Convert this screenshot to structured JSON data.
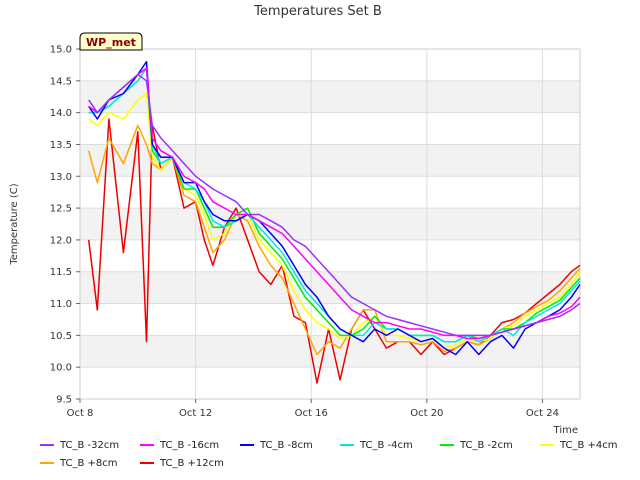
{
  "chart_data": {
    "type": "line",
    "title": "Temperatures Set B",
    "xlabel": "Time",
    "ylabel": "Temperature (C)",
    "annotation": "WP_met",
    "xlim": [
      8,
      25.3
    ],
    "ylim": [
      9.5,
      15.0
    ],
    "xticks": [
      8,
      12,
      16,
      20,
      24
    ],
    "xtick_labels": [
      "Oct 8",
      "Oct 12",
      "Oct 16",
      "Oct 20",
      "Oct 24"
    ],
    "yticks": [
      9.5,
      10.0,
      10.5,
      11.0,
      11.5,
      12.0,
      12.5,
      13.0,
      13.5,
      14.0,
      14.5,
      15.0
    ],
    "ytick_labels": [
      "9.5",
      "10.0",
      "10.5",
      "11.0",
      "11.5",
      "12.0",
      "12.5",
      "13.0",
      "13.5",
      "14.0",
      "14.5",
      "15.0"
    ],
    "x_unit": "day of October",
    "grid": true,
    "legend_position": "bottom",
    "x": [
      8.3,
      8.6,
      9.0,
      9.5,
      10.0,
      10.3,
      10.5,
      10.8,
      11.2,
      11.6,
      12.0,
      12.3,
      12.6,
      13.0,
      13.4,
      13.8,
      14.2,
      14.6,
      15.0,
      15.4,
      15.8,
      16.2,
      16.6,
      17.0,
      17.4,
      17.8,
      18.2,
      18.6,
      19.0,
      19.4,
      19.8,
      20.2,
      20.6,
      21.0,
      21.4,
      21.8,
      22.2,
      22.6,
      23.0,
      23.4,
      23.8,
      24.2,
      24.6,
      25.0,
      25.3
    ],
    "series": [
      {
        "name": "TC_B -32cm",
        "color": "#9b30ff",
        "values": [
          14.2,
          14.0,
          14.2,
          14.4,
          14.6,
          14.5,
          13.8,
          13.6,
          13.4,
          13.2,
          13.0,
          12.9,
          12.8,
          12.7,
          12.6,
          12.4,
          12.4,
          12.3,
          12.2,
          12.0,
          11.9,
          11.7,
          11.5,
          11.3,
          11.1,
          11.0,
          10.9,
          10.8,
          10.75,
          10.7,
          10.65,
          10.6,
          10.55,
          10.5,
          10.5,
          10.5,
          10.5,
          10.55,
          10.6,
          10.65,
          10.7,
          10.75,
          10.8,
          10.9,
          11.0
        ]
      },
      {
        "name": "TC_B -16cm",
        "color": "#ff00ff",
        "values": [
          14.1,
          14.0,
          14.2,
          14.4,
          14.6,
          14.7,
          13.6,
          13.4,
          13.3,
          13.0,
          12.9,
          12.8,
          12.6,
          12.5,
          12.4,
          12.4,
          12.3,
          12.2,
          12.1,
          11.9,
          11.7,
          11.5,
          11.3,
          11.1,
          10.9,
          10.8,
          10.7,
          10.7,
          10.65,
          10.6,
          10.6,
          10.55,
          10.5,
          10.5,
          10.45,
          10.45,
          10.5,
          10.55,
          10.6,
          10.65,
          10.7,
          10.8,
          10.85,
          10.95,
          11.1
        ]
      },
      {
        "name": "TC_B -8cm",
        "color": "#0000ff",
        "values": [
          14.1,
          13.9,
          14.2,
          14.3,
          14.6,
          14.8,
          13.5,
          13.3,
          13.3,
          12.9,
          12.9,
          12.6,
          12.4,
          12.3,
          12.3,
          12.4,
          12.3,
          12.1,
          11.9,
          11.6,
          11.3,
          11.1,
          10.8,
          10.6,
          10.5,
          10.4,
          10.6,
          10.5,
          10.6,
          10.5,
          10.4,
          10.45,
          10.3,
          10.2,
          10.4,
          10.2,
          10.4,
          10.5,
          10.3,
          10.6,
          10.7,
          10.8,
          10.9,
          11.1,
          11.3
        ]
      },
      {
        "name": "TC_B -4cm",
        "color": "#00e5ee",
        "values": [
          14.0,
          14.0,
          14.1,
          14.3,
          14.5,
          14.7,
          13.5,
          13.2,
          13.3,
          12.9,
          12.8,
          12.6,
          12.3,
          12.2,
          12.3,
          12.4,
          12.2,
          12.0,
          11.8,
          11.5,
          11.2,
          11.0,
          10.8,
          10.6,
          10.5,
          10.5,
          10.7,
          10.6,
          10.6,
          10.5,
          10.5,
          10.5,
          10.4,
          10.4,
          10.5,
          10.4,
          10.5,
          10.6,
          10.5,
          10.7,
          10.8,
          10.9,
          11.0,
          11.2,
          11.35
        ]
      },
      {
        "name": "TC_B -2cm",
        "color": "#00ee00",
        "values": [
          14.0,
          14.0,
          14.1,
          14.3,
          14.5,
          14.7,
          13.4,
          13.2,
          13.3,
          12.8,
          12.8,
          12.5,
          12.2,
          12.2,
          12.4,
          12.5,
          12.1,
          11.9,
          11.7,
          11.4,
          11.1,
          10.9,
          10.7,
          10.5,
          10.5,
          10.6,
          10.8,
          10.6,
          10.6,
          10.5,
          10.5,
          10.5,
          10.4,
          10.4,
          10.5,
          10.45,
          10.5,
          10.6,
          10.6,
          10.7,
          10.85,
          10.95,
          11.05,
          11.25,
          11.4
        ]
      },
      {
        "name": "TC_B +4cm",
        "color": "#ffff00",
        "values": [
          13.9,
          13.8,
          14.0,
          13.9,
          14.2,
          14.3,
          13.3,
          13.1,
          13.3,
          12.8,
          12.7,
          12.4,
          12.0,
          12.1,
          12.4,
          12.4,
          12.0,
          11.8,
          11.6,
          11.2,
          10.9,
          10.7,
          10.6,
          10.45,
          10.5,
          10.7,
          10.8,
          10.5,
          10.5,
          10.45,
          10.4,
          10.45,
          10.3,
          10.35,
          10.45,
          10.4,
          10.45,
          10.6,
          10.65,
          10.8,
          10.9,
          11.0,
          11.1,
          11.3,
          11.5
        ]
      },
      {
        "name": "TC_B +8cm",
        "color": "#ffa500",
        "values": [
          13.4,
          12.9,
          13.6,
          13.2,
          13.8,
          13.5,
          13.2,
          13.1,
          13.3,
          12.7,
          12.6,
          12.2,
          11.8,
          12.0,
          12.4,
          12.3,
          11.9,
          11.6,
          11.4,
          11.0,
          10.6,
          10.2,
          10.4,
          10.3,
          10.6,
          10.9,
          10.9,
          10.4,
          10.4,
          10.4,
          10.35,
          10.4,
          10.25,
          10.3,
          10.4,
          10.35,
          10.45,
          10.6,
          10.7,
          10.85,
          10.95,
          11.05,
          11.2,
          11.4,
          11.55
        ]
      },
      {
        "name": "TC_B +12cm",
        "color": "#ee0000",
        "values": [
          12.0,
          10.9,
          13.9,
          11.8,
          13.7,
          10.4,
          13.8,
          13.1,
          13.3,
          12.5,
          12.6,
          12.0,
          11.6,
          12.2,
          12.5,
          12.0,
          11.5,
          11.3,
          11.6,
          10.8,
          10.7,
          9.75,
          10.6,
          9.8,
          10.6,
          10.9,
          10.6,
          10.3,
          10.4,
          10.4,
          10.2,
          10.4,
          10.2,
          10.3,
          10.4,
          10.35,
          10.5,
          10.7,
          10.75,
          10.85,
          11.0,
          11.15,
          11.3,
          11.5,
          11.6
        ]
      }
    ]
  }
}
